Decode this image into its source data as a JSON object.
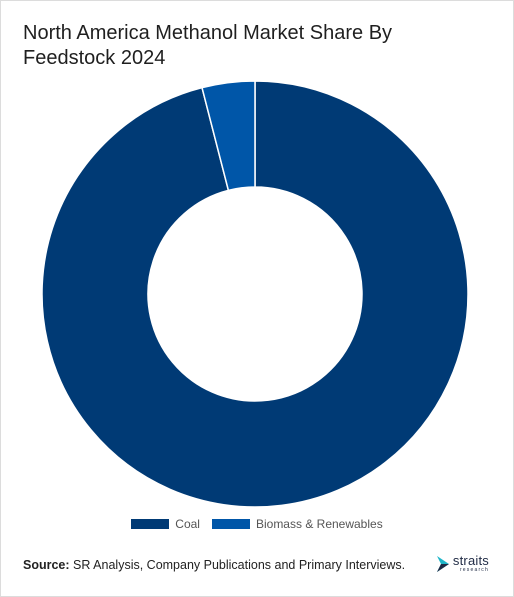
{
  "chart_data": {
    "type": "pie",
    "variant": "donut",
    "title": "North America Methanol Market Share By Feedstock 2024",
    "categories": [
      "Coal",
      "Biomass & Renewables"
    ],
    "values": [
      96,
      4
    ],
    "colors": [
      "#003a75",
      "#0056a8"
    ],
    "legend": {
      "position": "bottom",
      "items": [
        {
          "label": "Coal",
          "color": "#003a75"
        },
        {
          "label": "Biomass & Renewables",
          "color": "#0056a8"
        }
      ]
    }
  },
  "source": {
    "label": "Source:",
    "text": "SR Analysis, Company Publications and Primary Interviews."
  },
  "logo": {
    "name": "straits",
    "sub": "research"
  }
}
